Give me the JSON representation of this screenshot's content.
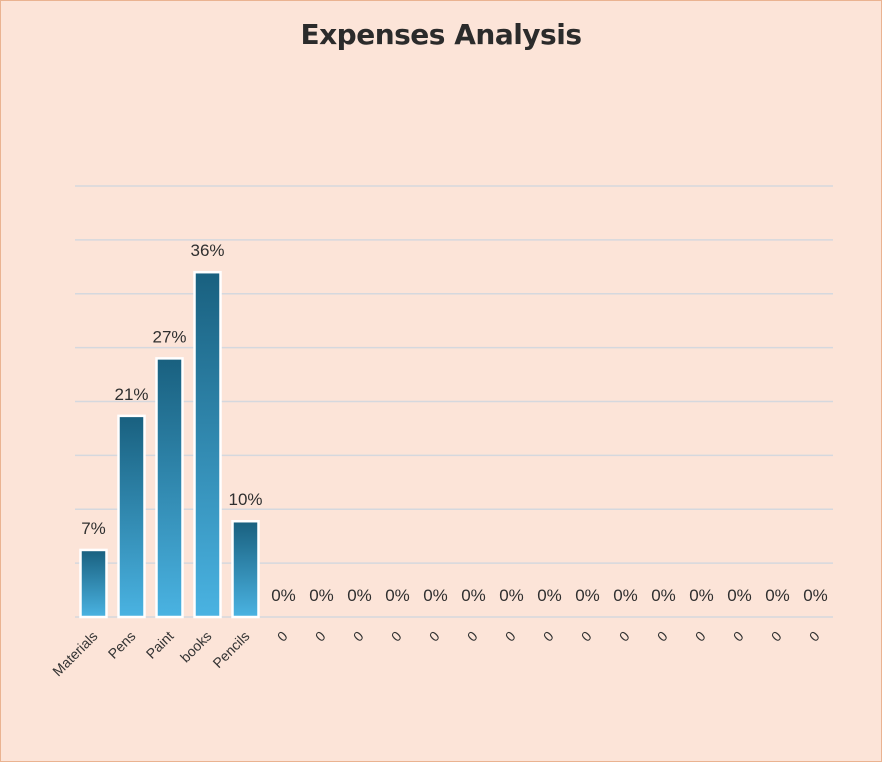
{
  "chart_data": {
    "type": "bar",
    "title": "Expenses Analysis",
    "categories": [
      "Materials",
      "Pens",
      "Paint",
      "books",
      "Pencils",
      "0",
      "0",
      "0",
      "0",
      "0",
      "0",
      "0",
      "0",
      "0",
      "0",
      "0",
      "0",
      "0",
      "0",
      "0"
    ],
    "values": [
      7,
      21,
      27,
      36,
      10,
      0,
      0,
      0,
      0,
      0,
      0,
      0,
      0,
      0,
      0,
      0,
      0,
      0,
      0,
      0
    ],
    "data_labels": [
      "7%",
      "21%",
      "27%",
      "36%",
      "10%",
      "0%",
      "0%",
      "0%",
      "0%",
      "0%",
      "0%",
      "0%",
      "0%",
      "0%",
      "0%",
      "0%",
      "0%",
      "0%",
      "0%",
      "0%"
    ],
    "ylim": [
      0,
      45
    ],
    "grid": true,
    "colors": {
      "bar_top": "#19607f",
      "bar_bottom": "#4ab3e2",
      "background": "#fce4d8",
      "border": "#eab391"
    }
  }
}
